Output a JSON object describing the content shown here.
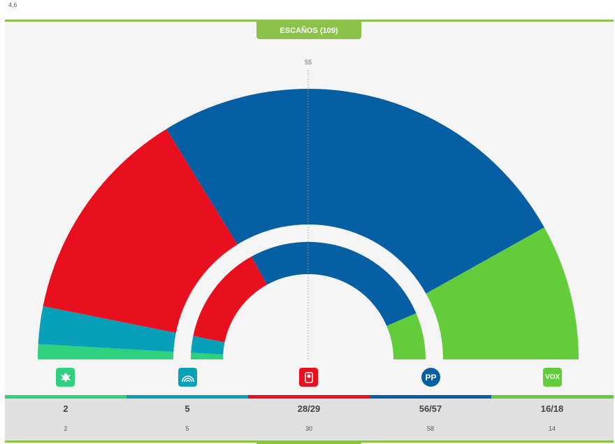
{
  "top_value": "4,6",
  "header": {
    "tab_label": "ESCAÑOS (109)"
  },
  "chart_data": {
    "type": "parliament_semicircle",
    "title": "ESCAÑOS (109)",
    "total_seats": 109,
    "majority_label": "55",
    "parties": [
      {
        "name": "Leonesista",
        "color": "#2fd17f",
        "icon": "lion-logo-icon",
        "seats_label": "2",
        "seats": 2,
        "previous_label": "2",
        "previous": 2
      },
      {
        "name": "Podemos",
        "color": "#08a0b8",
        "icon": "rainbow-logo-icon",
        "seats_label": "5",
        "seats": 5,
        "previous_label": "5",
        "previous": 5
      },
      {
        "name": "PSOE",
        "color": "#e8101f",
        "icon": "rose-logo-icon",
        "seats_label": "28/29",
        "seats": 29,
        "previous_label": "30",
        "previous": 30
      },
      {
        "name": "PP",
        "color": "#065ea3",
        "icon": "pp-logo-icon",
        "seats_label": "56/57",
        "seats": 57,
        "previous_label": "58",
        "previous": 58
      },
      {
        "name": "VOX",
        "color": "#62cc3a",
        "icon": "vox-logo-icon",
        "seats_label": "16/18",
        "seats": 18,
        "previous_label": "14",
        "previous": 14
      }
    ]
  },
  "logos": {
    "pp_text": "PP",
    "vox_text": "VOX"
  }
}
